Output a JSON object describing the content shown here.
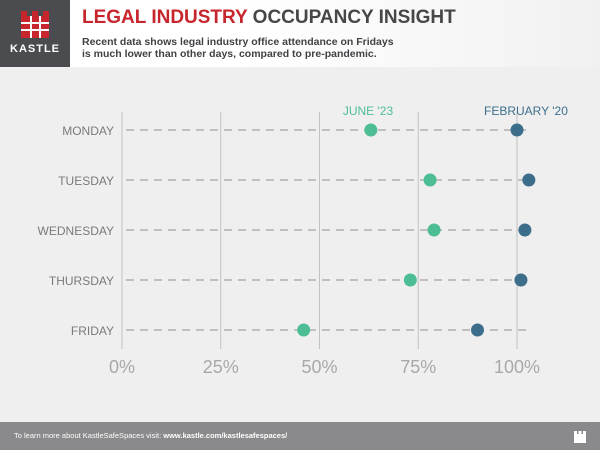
{
  "brand": {
    "name": "KASTLE",
    "logo_icon": "castle-logo-icon"
  },
  "header": {
    "title_part1": "LEGAL INDUSTRY",
    "title_part2": "OCCUPANCY INSIGHT",
    "subtitle_line1": "Recent data shows legal industry office attendance on Fridays",
    "subtitle_line2": "is much lower than other days, compared to pre-pandemic."
  },
  "footer": {
    "text": "To learn more about KastleSafeSpaces visit:",
    "link": "www.kastle.com/kastlesafespaces/",
    "icon": "castle-small-icon"
  },
  "chart_data": {
    "type": "scatter",
    "categories": [
      "MONDAY",
      "TUESDAY",
      "WEDNESDAY",
      "THURSDAY",
      "FRIDAY"
    ],
    "series": [
      {
        "name": "JUNE '23",
        "color": "#4dbe94",
        "values": [
          63,
          78,
          79,
          73,
          46
        ]
      },
      {
        "name": "FEBRUARY '20",
        "color": "#3c6e8c",
        "values": [
          100,
          103,
          102,
          101,
          90
        ]
      }
    ],
    "x_ticks": [
      "0%",
      "25%",
      "50%",
      "75%",
      "100%"
    ],
    "xlim": [
      0,
      100
    ],
    "grid": "vertical",
    "legend": "top"
  }
}
